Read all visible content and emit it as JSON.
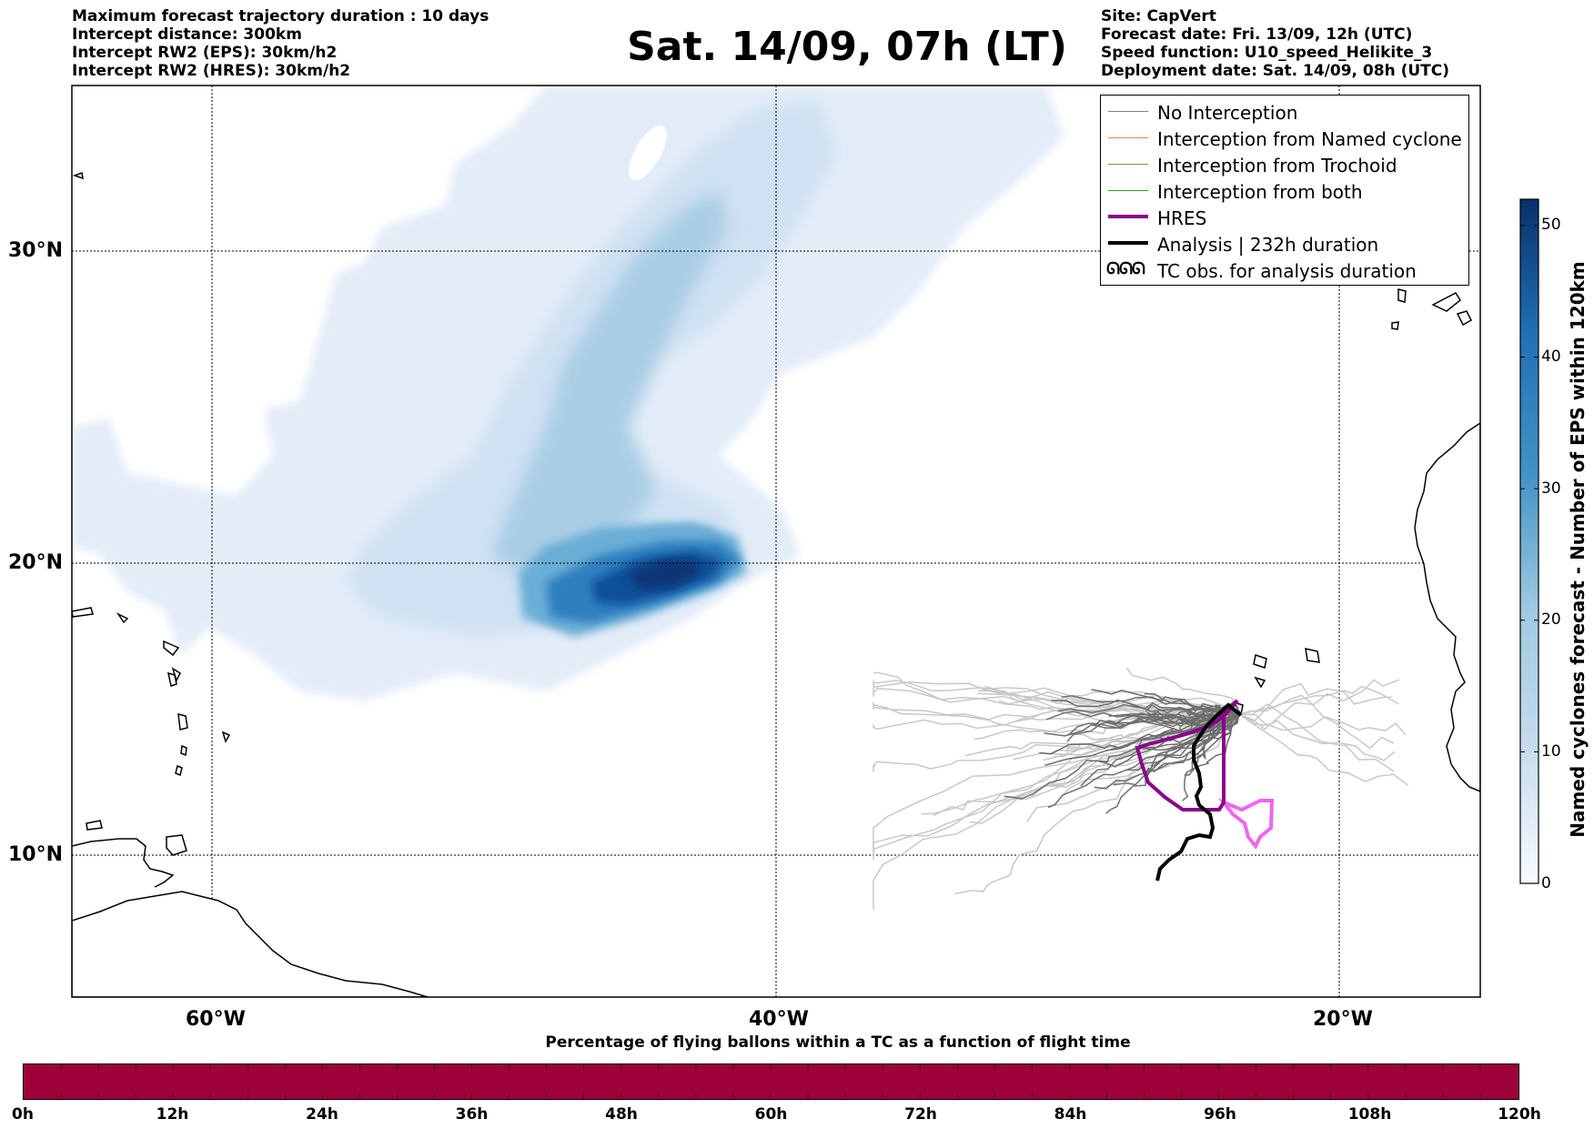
{
  "header": {
    "left": [
      "Maximum forecast trajectory duration : 10 days",
      "Intercept distance: 300km",
      "Intercept RW2 (EPS):  30km/h2",
      "Intercept RW2 (HRES): 30km/h2"
    ],
    "title": "Sat. 14/09, 07h (LT)",
    "right": [
      "Site: CapVert",
      "Forecast date: Fri. 13/09, 12h (UTC)",
      "Speed function: U10_speed_Helikite_3",
      "Deployment date: Sat. 14/09, 08h (UTC)"
    ]
  },
  "map": {
    "lat_labels": [
      "30°N",
      "20°N",
      "10°N"
    ],
    "lon_labels": [
      "60°W",
      "40°W",
      "20°W"
    ],
    "density_colors": [
      "#e1ecf7",
      "#c6dbef",
      "#9ecae1",
      "#6baed6",
      "#3182bd",
      "#08519c",
      "#08306b"
    ],
    "land_color": "#ffffff"
  },
  "legend": {
    "items": [
      {
        "label": "No Interception",
        "color": "#808080",
        "width": 1.5
      },
      {
        "label": "Interception from Named cyclone",
        "color": "#ff7f50",
        "width": 1.5
      },
      {
        "label": "Interception from Trochoid",
        "color": "#9a8a2a",
        "width": 1.5
      },
      {
        "label": "Interception from both",
        "color": "#2ca02c",
        "width": 1.5
      },
      {
        "label": "HRES",
        "color": "#8b008b",
        "width": 4
      },
      {
        "label": "Analysis | 232h duration",
        "color": "#000000",
        "width": 4
      }
    ],
    "tc_symbol": "ᘏᘏᘏ",
    "tc_label": "TC obs. for analysis duration"
  },
  "colorbar": {
    "title": "Named cyclones forecast - Number of EPS within 120km",
    "ticks": [
      "0",
      "10",
      "20",
      "30",
      "40",
      "50"
    ],
    "min": 0,
    "max": 52
  },
  "percentage_bar": {
    "title": "Percentage of flying ballons within a TC as a function of flight time",
    "color": "#9e003a",
    "ticks": [
      "0h",
      "12h",
      "24h",
      "36h",
      "48h",
      "60h",
      "72h",
      "84h",
      "96h",
      "108h",
      "120h"
    ],
    "value_percent": 100
  }
}
